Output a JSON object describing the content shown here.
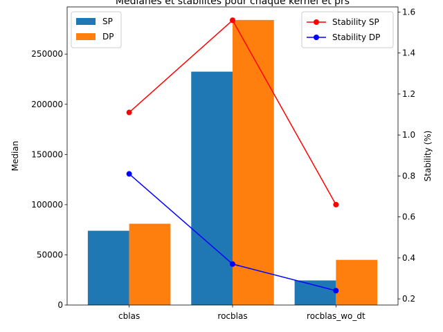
{
  "chart_data": {
    "type": "bar",
    "title": "Médianes et stabilités pour chaque kernel et prs",
    "xlabel": "",
    "ylabel": "Median",
    "y2label": "Stability (%)",
    "categories": [
      "cblas",
      "rocblas",
      "rocblas_wo_dt"
    ],
    "ylim": [
      0,
      297000
    ],
    "y2lim": [
      0.17,
      1.625
    ],
    "yticks": [
      0,
      50000,
      100000,
      150000,
      200000,
      250000
    ],
    "y2ticks": [
      0.2,
      0.4,
      0.6,
      0.8,
      1.0,
      1.2,
      1.4,
      1.6
    ],
    "bar_series": [
      {
        "name": "SP",
        "color": "#1f77b4",
        "values": [
          74000,
          232500,
          24500
        ]
      },
      {
        "name": "DP",
        "color": "#ff7f0e",
        "values": [
          81000,
          284000,
          45000
        ]
      }
    ],
    "line_series": [
      {
        "name": "Stability SP",
        "color": "#ff0000",
        "values": [
          1.11,
          1.56,
          0.66
        ]
      },
      {
        "name": "Stability DP",
        "color": "#0000ff",
        "values": [
          0.81,
          0.37,
          0.24
        ]
      }
    ],
    "legend_left": "top-left",
    "legend_right": "top-right",
    "grid": false
  }
}
